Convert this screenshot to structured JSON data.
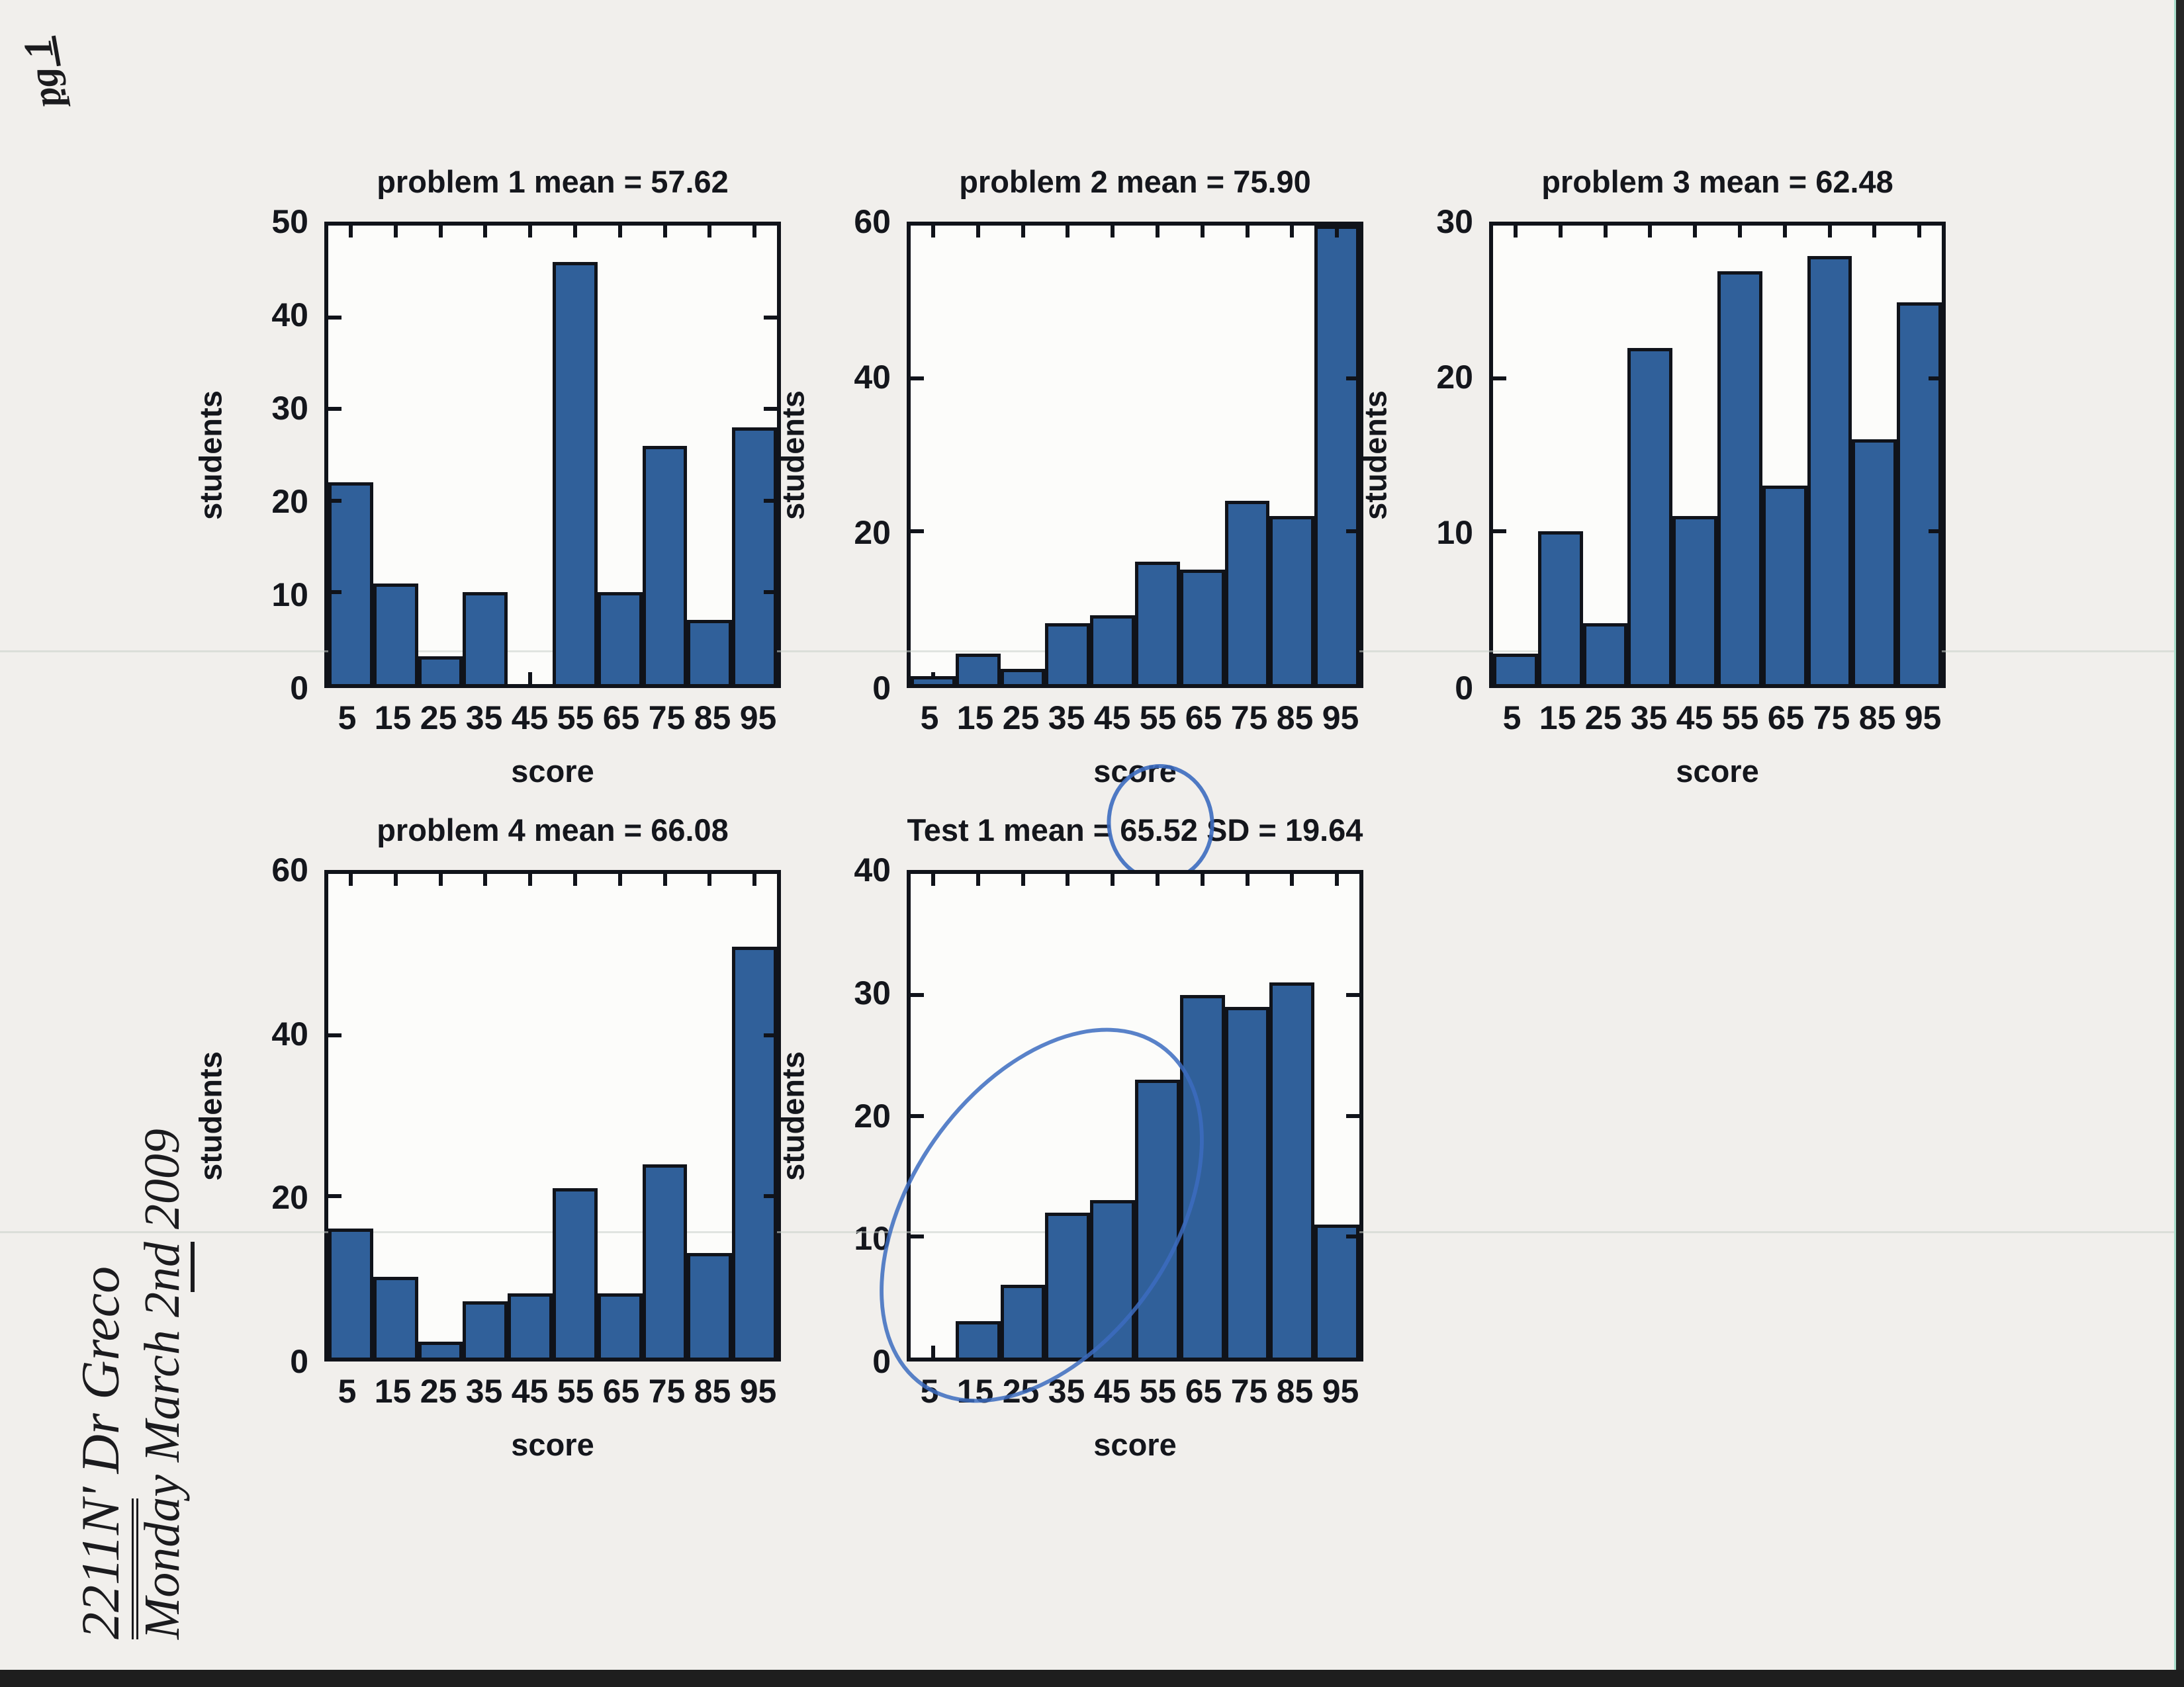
{
  "page": {
    "page_number_label": "pg 1",
    "note": {
      "line1_underlined": "2211N",
      "line1_rest": "' Dr Greco",
      "line2_pre": "Monday March 2",
      "line2_underlined": "nd",
      "line2_rest": " 2009"
    }
  },
  "colors": {
    "bar_fill": "#30609a",
    "ink": "#10131a",
    "pen_blue": "#3c6cc0",
    "paper": "#f1efec"
  },
  "chart_data": [
    {
      "type": "bar",
      "title": "problem 1 mean = 57.62",
      "xlabel": "score",
      "ylabel": "students",
      "categories": [
        "5",
        "15",
        "25",
        "35",
        "45",
        "55",
        "65",
        "75",
        "85",
        "95"
      ],
      "values": [
        22,
        11,
        3,
        10,
        0,
        46,
        10,
        26,
        7,
        28
      ],
      "ylim": [
        0,
        50
      ],
      "yticks": [
        0,
        10,
        20,
        30,
        40,
        50
      ],
      "grid": false,
      "legend": null
    },
    {
      "type": "bar",
      "title": "problem 2 mean = 75.90",
      "xlabel": "score",
      "ylabel": "students",
      "categories": [
        "5",
        "15",
        "25",
        "35",
        "45",
        "55",
        "65",
        "75",
        "85",
        "95"
      ],
      "values": [
        1,
        4,
        2,
        8,
        9,
        16,
        15,
        24,
        22,
        60
      ],
      "ylim": [
        0,
        60
      ],
      "yticks": [
        0,
        20,
        40,
        60
      ],
      "grid": false,
      "legend": null
    },
    {
      "type": "bar",
      "title": "problem 3 mean = 62.48",
      "xlabel": "score",
      "ylabel": "students",
      "categories": [
        "5",
        "15",
        "25",
        "35",
        "45",
        "55",
        "65",
        "75",
        "85",
        "95"
      ],
      "values": [
        2,
        10,
        4,
        22,
        11,
        27,
        13,
        28,
        16,
        25
      ],
      "ylim": [
        0,
        30
      ],
      "yticks": [
        0,
        10,
        20,
        30
      ],
      "grid": false,
      "legend": null
    },
    {
      "type": "bar",
      "title": "problem 4 mean = 66.08",
      "xlabel": "score",
      "ylabel": "students",
      "categories": [
        "5",
        "15",
        "25",
        "35",
        "45",
        "55",
        "65",
        "75",
        "85",
        "95"
      ],
      "values": [
        16,
        10,
        2,
        7,
        8,
        21,
        8,
        24,
        13,
        51
      ],
      "ylim": [
        0,
        60
      ],
      "yticks": [
        0,
        20,
        40,
        60
      ],
      "grid": false,
      "legend": null
    },
    {
      "type": "bar",
      "title": "Test 1 mean = 65.52 SD = 19.64",
      "title_parts": {
        "pre": "Test 1 mean = ",
        "circled": "65.52",
        "post": " SD = 19.64"
      },
      "xlabel": "score",
      "ylabel": "students",
      "categories": [
        "5",
        "15",
        "25",
        "35",
        "45",
        "55",
        "65",
        "75",
        "85",
        "95"
      ],
      "values": [
        0,
        3,
        6,
        12,
        13,
        23,
        30,
        29,
        31,
        11
      ],
      "ylim": [
        0,
        40
      ],
      "yticks": [
        0,
        10,
        20,
        30,
        40
      ],
      "grid": false,
      "legend": null,
      "pen_marks": [
        "circle-around-mean-value",
        "ellipse-over-low-score-bars"
      ]
    }
  ]
}
